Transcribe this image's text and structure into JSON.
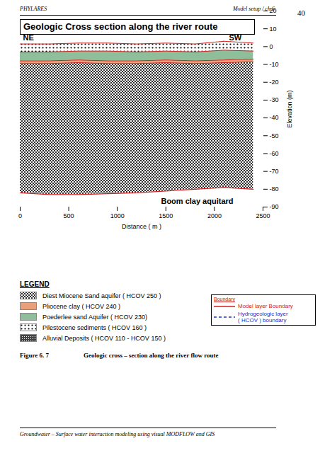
{
  "header": {
    "left": "PHYLARES",
    "right": "Model setup / ch.6",
    "page": "40"
  },
  "chart_data": {
    "type": "area",
    "title": "Geologic Cross section along the river route",
    "x_label": "Distance ( m )",
    "y_label": "Elevation (m)",
    "x": [
      0,
      300,
      600,
      900,
      1200,
      1500,
      1800,
      2100,
      2400
    ],
    "xlim": [
      0,
      2500
    ],
    "xticks": [
      0,
      500,
      1000,
      1500,
      2000,
      2500
    ],
    "ylim": [
      -90,
      20
    ],
    "yticks": [
      -90,
      -80,
      -70,
      -60,
      -50,
      -40,
      -30,
      -20,
      -10,
      0,
      10,
      20
    ],
    "legend_title": "LEGEND",
    "series": [
      {
        "name": "Diest Miocene Sand aquifer ( HCOV 250 )",
        "color": "#333333",
        "top": [
          -9.5,
          -9.5,
          -9,
          -9.5,
          -9.5,
          -9,
          -9.5,
          -9,
          -8.5
        ],
        "bottom": [
          -82,
          -83,
          -83,
          -82.5,
          -82,
          -81,
          -80,
          -79,
          -80
        ]
      },
      {
        "name": "Pliocene clay ( HCOV 240 )",
        "color": "#e8a07a",
        "top": [
          -8,
          -8,
          -7.5,
          -8,
          -8,
          -7.5,
          -8,
          -7.5,
          -7
        ],
        "bottom": [
          -9.5,
          -9.5,
          -9,
          -9.5,
          -9.5,
          -9,
          -9.5,
          -9,
          -8.5
        ]
      },
      {
        "name": "Poederlee sand Aquifer ( HCOV 230)",
        "color": "#8fbf9a",
        "top": [
          -3,
          -3,
          -2.5,
          -2.5,
          -3,
          -2.5,
          -3,
          -2,
          -2.5
        ],
        "bottom": [
          -8,
          -8,
          -7.5,
          -8,
          -8,
          -7.5,
          -8,
          -7.5,
          -7
        ]
      },
      {
        "name": "Pilestocene sediments ( HCOV 160 )",
        "color": "#000000",
        "top": [
          1.5,
          1.5,
          2,
          2,
          1.5,
          2,
          1.5,
          3,
          2
        ],
        "bottom": [
          -3,
          -3,
          -2.5,
          -2.5,
          -3,
          -2.5,
          -3,
          -2,
          -2.5
        ]
      },
      {
        "name": "Alluvial Deposits ( HCOV 110 - HCOV 150 )",
        "color": "#444444"
      }
    ],
    "annotations": [
      {
        "text": "NE",
        "x": 30,
        "y": 5
      },
      {
        "text": "SW",
        "x": 2150,
        "y": 5
      },
      {
        "text": "Boom clay aquitard",
        "x": 1450,
        "y": -87
      }
    ]
  },
  "boundary_legend": {
    "title": "Boundary",
    "items": [
      {
        "lines": [
          "Model layer Boundary"
        ],
        "color": "#d02020",
        "line_style": "solid"
      },
      {
        "lines": [
          "Hydrogeologic layer",
          "( HCOV ) boundary"
        ],
        "color": "#2030c0",
        "line_style": "dashed"
      }
    ]
  },
  "caption": {
    "number": "Figure 6. 7",
    "text": "Geologic cross – section along the river flow route"
  },
  "footer": "Groundwater – Surface water interaction modeling using visual MODFLOW and GIS"
}
